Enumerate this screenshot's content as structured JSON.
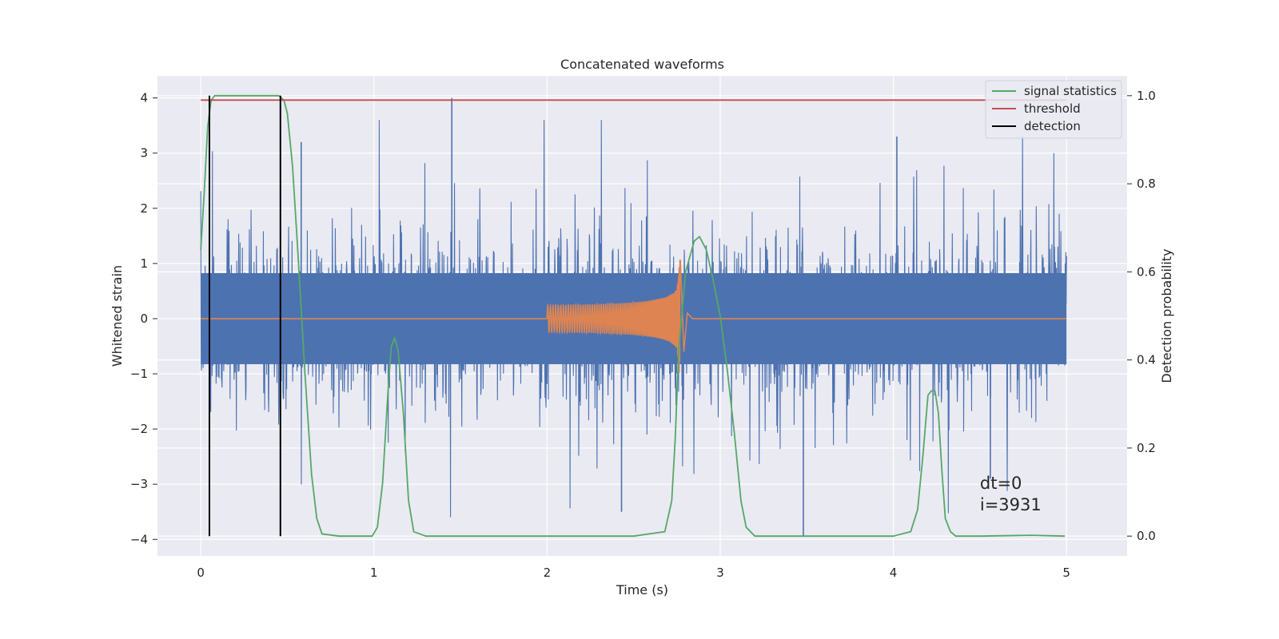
{
  "chart_data": {
    "type": "line",
    "title": "Concatenated waveforms",
    "xlabel": "Time (s)",
    "ylabel": "Whitened strain",
    "y2label": "Detection probability",
    "xlim": [
      -0.25,
      5.35
    ],
    "ylim": [
      -4.3,
      4.4
    ],
    "y2lim": [
      -0.045,
      1.045
    ],
    "xticks": [
      0,
      1,
      2,
      3,
      4,
      5
    ],
    "yticks": [
      -4,
      -3,
      -2,
      -1,
      0,
      1,
      2,
      3,
      4
    ],
    "y2ticks": [
      0.0,
      0.2,
      0.4,
      0.6,
      0.8,
      1.0
    ],
    "grid": true,
    "legend_position": "top-right",
    "legend": [
      "signal statistics",
      "threshold",
      "detection"
    ],
    "colors": {
      "noise": "#4c72b0",
      "signal": "#dd8452",
      "statistic": "#55a868",
      "threshold": "#c44e52",
      "detection": "#000000",
      "background": "#eaeaf2"
    },
    "series": [
      {
        "name": "signal statistics",
        "axis": "right",
        "x": [
          0,
          0.02,
          0.04,
          0.06,
          0.08,
          0.12,
          0.2,
          0.3,
          0.4,
          0.45,
          0.48,
          0.5,
          0.53,
          0.56,
          0.6,
          0.64,
          0.67,
          0.7,
          0.8,
          0.9,
          0.99,
          1.02,
          1.05,
          1.08,
          1.1,
          1.12,
          1.14,
          1.17,
          1.2,
          1.23,
          1.3,
          1.5,
          2.0,
          2.5,
          2.68,
          2.72,
          2.74,
          2.76,
          2.8,
          2.85,
          2.88,
          2.92,
          2.96,
          3.0,
          3.04,
          3.08,
          3.12,
          3.15,
          3.2,
          3.5,
          4.0,
          4.1,
          4.14,
          4.17,
          4.2,
          4.22,
          4.24,
          4.26,
          4.28,
          4.3,
          4.33,
          4.36,
          4.5,
          4.8,
          4.99
        ],
        "y": [
          0.65,
          0.78,
          0.93,
          0.99,
          1.0,
          1.0,
          1.0,
          1.0,
          1.0,
          1.0,
          0.99,
          0.96,
          0.84,
          0.65,
          0.38,
          0.14,
          0.04,
          0.005,
          0.0,
          0.0,
          0.0,
          0.02,
          0.12,
          0.32,
          0.43,
          0.45,
          0.42,
          0.28,
          0.08,
          0.01,
          0.0,
          0.0,
          0.0,
          0.0,
          0.01,
          0.08,
          0.22,
          0.42,
          0.6,
          0.67,
          0.68,
          0.65,
          0.58,
          0.5,
          0.38,
          0.24,
          0.08,
          0.02,
          0.0,
          0.0,
          0.0,
          0.01,
          0.06,
          0.18,
          0.32,
          0.33,
          0.33,
          0.28,
          0.15,
          0.04,
          0.01,
          0.0,
          0.0,
          0.002,
          0.0
        ]
      },
      {
        "name": "threshold",
        "axis": "right",
        "x": [
          0,
          5
        ],
        "y": [
          0.99,
          0.99
        ]
      },
      {
        "name": "detection",
        "axis": "right",
        "x": [
          0.05,
          0.46
        ],
        "y": [
          0.0,
          1.0
        ]
      }
    ],
    "noise": {
      "x_range": [
        0,
        5
      ],
      "envelope": 1.1,
      "spikes": [
        {
          "x": 1.45,
          "y": 4.0
        },
        {
          "x": 3.48,
          "y": -3.95
        },
        {
          "x": 2.43,
          "y": -3.5
        },
        {
          "x": 0.58,
          "y": 3.2
        },
        {
          "x": 4.02,
          "y": 3.3
        },
        {
          "x": 4.56,
          "y": -2.9
        }
      ]
    },
    "injected_signal": {
      "t_start": 2.0,
      "t_merge": 2.77,
      "peak_amplitude": 1.1
    },
    "annotations": [
      "dt=0",
      "i=3931"
    ]
  }
}
